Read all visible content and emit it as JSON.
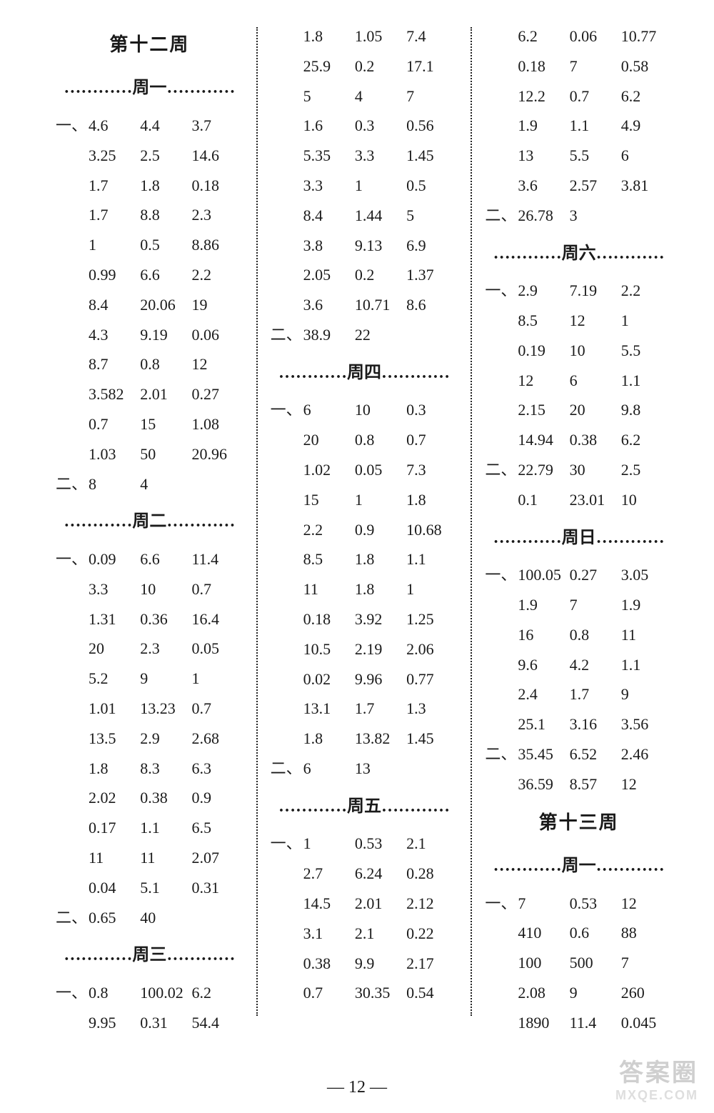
{
  "pageNumber": "— 12 —",
  "watermark": {
    "line1": "答案圈",
    "line2": "MXQE.COM"
  },
  "columns": [
    {
      "blocks": [
        {
          "type": "week",
          "text": "第十二周"
        },
        {
          "type": "day",
          "text": "…………周一…………"
        },
        {
          "type": "rows",
          "rows": [
            [
              "一、",
              "4.6",
              "4.4",
              "3.7"
            ],
            [
              "",
              "3.25",
              "2.5",
              "14.6"
            ],
            [
              "",
              "1.7",
              "1.8",
              "0.18"
            ],
            [
              "",
              "1.7",
              "8.8",
              "2.3"
            ],
            [
              "",
              "1",
              "0.5",
              "8.86"
            ],
            [
              "",
              "0.99",
              "6.6",
              "2.2"
            ],
            [
              "",
              "8.4",
              "20.06",
              "19"
            ],
            [
              "",
              "4.3",
              "9.19",
              "0.06"
            ],
            [
              "",
              "8.7",
              "0.8",
              "12"
            ],
            [
              "",
              "3.582",
              "2.01",
              "0.27"
            ],
            [
              "",
              "0.7",
              "15",
              "1.08"
            ],
            [
              "",
              "1.03",
              "50",
              "20.96"
            ],
            [
              "二、",
              "8",
              "4",
              ""
            ]
          ]
        },
        {
          "type": "day",
          "text": "…………周二…………"
        },
        {
          "type": "rows",
          "rows": [
            [
              "一、",
              "0.09",
              "6.6",
              "11.4"
            ],
            [
              "",
              "3.3",
              "10",
              "0.7"
            ],
            [
              "",
              "1.31",
              "0.36",
              "16.4"
            ],
            [
              "",
              "20",
              "2.3",
              "0.05"
            ],
            [
              "",
              "5.2",
              "9",
              "1"
            ],
            [
              "",
              "1.01",
              "13.23",
              "0.7"
            ],
            [
              "",
              "13.5",
              "2.9",
              "2.68"
            ],
            [
              "",
              "1.8",
              "8.3",
              "6.3"
            ],
            [
              "",
              "2.02",
              "0.38",
              "0.9"
            ],
            [
              "",
              "0.17",
              "1.1",
              "6.5"
            ],
            [
              "",
              "11",
              "11",
              "2.07"
            ],
            [
              "",
              "0.04",
              "5.1",
              "0.31"
            ],
            [
              "二、",
              "0.65",
              "40",
              ""
            ]
          ]
        },
        {
          "type": "day",
          "text": "…………周三…………"
        },
        {
          "type": "rows",
          "rows": [
            [
              "一、",
              "0.8",
              "100.02",
              "6.2"
            ],
            [
              "",
              "9.95",
              "0.31",
              "54.4"
            ]
          ]
        }
      ]
    },
    {
      "blocks": [
        {
          "type": "rows",
          "rows": [
            [
              "",
              "1.8",
              "1.05",
              "7.4"
            ],
            [
              "",
              "25.9",
              "0.2",
              "17.1"
            ],
            [
              "",
              "5",
              "4",
              "7"
            ],
            [
              "",
              "1.6",
              "0.3",
              "0.56"
            ],
            [
              "",
              "5.35",
              "3.3",
              "1.45"
            ],
            [
              "",
              "3.3",
              "1",
              "0.5"
            ],
            [
              "",
              "8.4",
              "1.44",
              "5"
            ],
            [
              "",
              "3.8",
              "9.13",
              "6.9"
            ],
            [
              "",
              "2.05",
              "0.2",
              "1.37"
            ],
            [
              "",
              "3.6",
              "10.71",
              "8.6"
            ],
            [
              "二、",
              "38.9",
              "22",
              ""
            ]
          ]
        },
        {
          "type": "day",
          "text": "…………周四…………"
        },
        {
          "type": "rows",
          "rows": [
            [
              "一、",
              "6",
              "10",
              "0.3"
            ],
            [
              "",
              "20",
              "0.8",
              "0.7"
            ],
            [
              "",
              "1.02",
              "0.05",
              "7.3"
            ],
            [
              "",
              "15",
              "1",
              "1.8"
            ],
            [
              "",
              "2.2",
              "0.9",
              "10.68"
            ],
            [
              "",
              "8.5",
              "1.8",
              "1.1"
            ],
            [
              "",
              "11",
              "1.8",
              "1"
            ],
            [
              "",
              "0.18",
              "3.92",
              "1.25"
            ],
            [
              "",
              "10.5",
              "2.19",
              "2.06"
            ],
            [
              "",
              "0.02",
              "9.96",
              "0.77"
            ],
            [
              "",
              "13.1",
              "1.7",
              "1.3"
            ],
            [
              "",
              "1.8",
              "13.82",
              "1.45"
            ],
            [
              "二、",
              "6",
              "13",
              ""
            ]
          ]
        },
        {
          "type": "day",
          "text": "…………周五…………"
        },
        {
          "type": "rows",
          "rows": [
            [
              "一、",
              "1",
              "0.53",
              "2.1"
            ],
            [
              "",
              "2.7",
              "6.24",
              "0.28"
            ],
            [
              "",
              "14.5",
              "2.01",
              "2.12"
            ],
            [
              "",
              "3.1",
              "2.1",
              "0.22"
            ],
            [
              "",
              "0.38",
              "9.9",
              "2.17"
            ],
            [
              "",
              "0.7",
              "30.35",
              "0.54"
            ]
          ]
        }
      ]
    },
    {
      "blocks": [
        {
          "type": "rows",
          "rows": [
            [
              "",
              "6.2",
              "0.06",
              "10.77"
            ],
            [
              "",
              "0.18",
              "7",
              "0.58"
            ],
            [
              "",
              "12.2",
              "0.7",
              "6.2"
            ],
            [
              "",
              "1.9",
              "1.1",
              "4.9"
            ],
            [
              "",
              "13",
              "5.5",
              "6"
            ],
            [
              "",
              "3.6",
              "2.57",
              "3.81"
            ],
            [
              "二、",
              "26.78",
              "3",
              ""
            ]
          ]
        },
        {
          "type": "day",
          "text": "…………周六…………"
        },
        {
          "type": "rows",
          "rows": [
            [
              "一、",
              "2.9",
              "7.19",
              "2.2"
            ],
            [
              "",
              "8.5",
              "12",
              "1"
            ],
            [
              "",
              "0.19",
              "10",
              "5.5"
            ],
            [
              "",
              "12",
              "6",
              "1.1"
            ],
            [
              "",
              "2.15",
              "20",
              "9.8"
            ],
            [
              "",
              "14.94",
              "0.38",
              "6.2"
            ],
            [
              "二、",
              "22.79",
              "30",
              "2.5"
            ],
            [
              "",
              "0.1",
              "23.01",
              "10"
            ]
          ]
        },
        {
          "type": "day",
          "text": "…………周日…………"
        },
        {
          "type": "rows",
          "rows": [
            [
              "一、",
              "100.05",
              "0.27",
              "3.05"
            ],
            [
              "",
              "1.9",
              "7",
              "1.9"
            ],
            [
              "",
              "16",
              "0.8",
              "11"
            ],
            [
              "",
              "9.6",
              "4.2",
              "1.1"
            ],
            [
              "",
              "2.4",
              "1.7",
              "9"
            ],
            [
              "",
              "25.1",
              "3.16",
              "3.56"
            ],
            [
              "二、",
              "35.45",
              "6.52",
              "2.46"
            ],
            [
              "",
              "36.59",
              "8.57",
              "12"
            ]
          ]
        },
        {
          "type": "week",
          "text": "第十三周"
        },
        {
          "type": "day",
          "text": "…………周一…………"
        },
        {
          "type": "rows",
          "rows": [
            [
              "一、",
              "7",
              "0.53",
              "12"
            ],
            [
              "",
              "410",
              "0.6",
              "88"
            ],
            [
              "",
              "100",
              "500",
              "7"
            ],
            [
              "",
              "2.08",
              "9",
              "260"
            ],
            [
              "",
              "1890",
              "11.4",
              "0.045"
            ]
          ]
        }
      ]
    }
  ]
}
